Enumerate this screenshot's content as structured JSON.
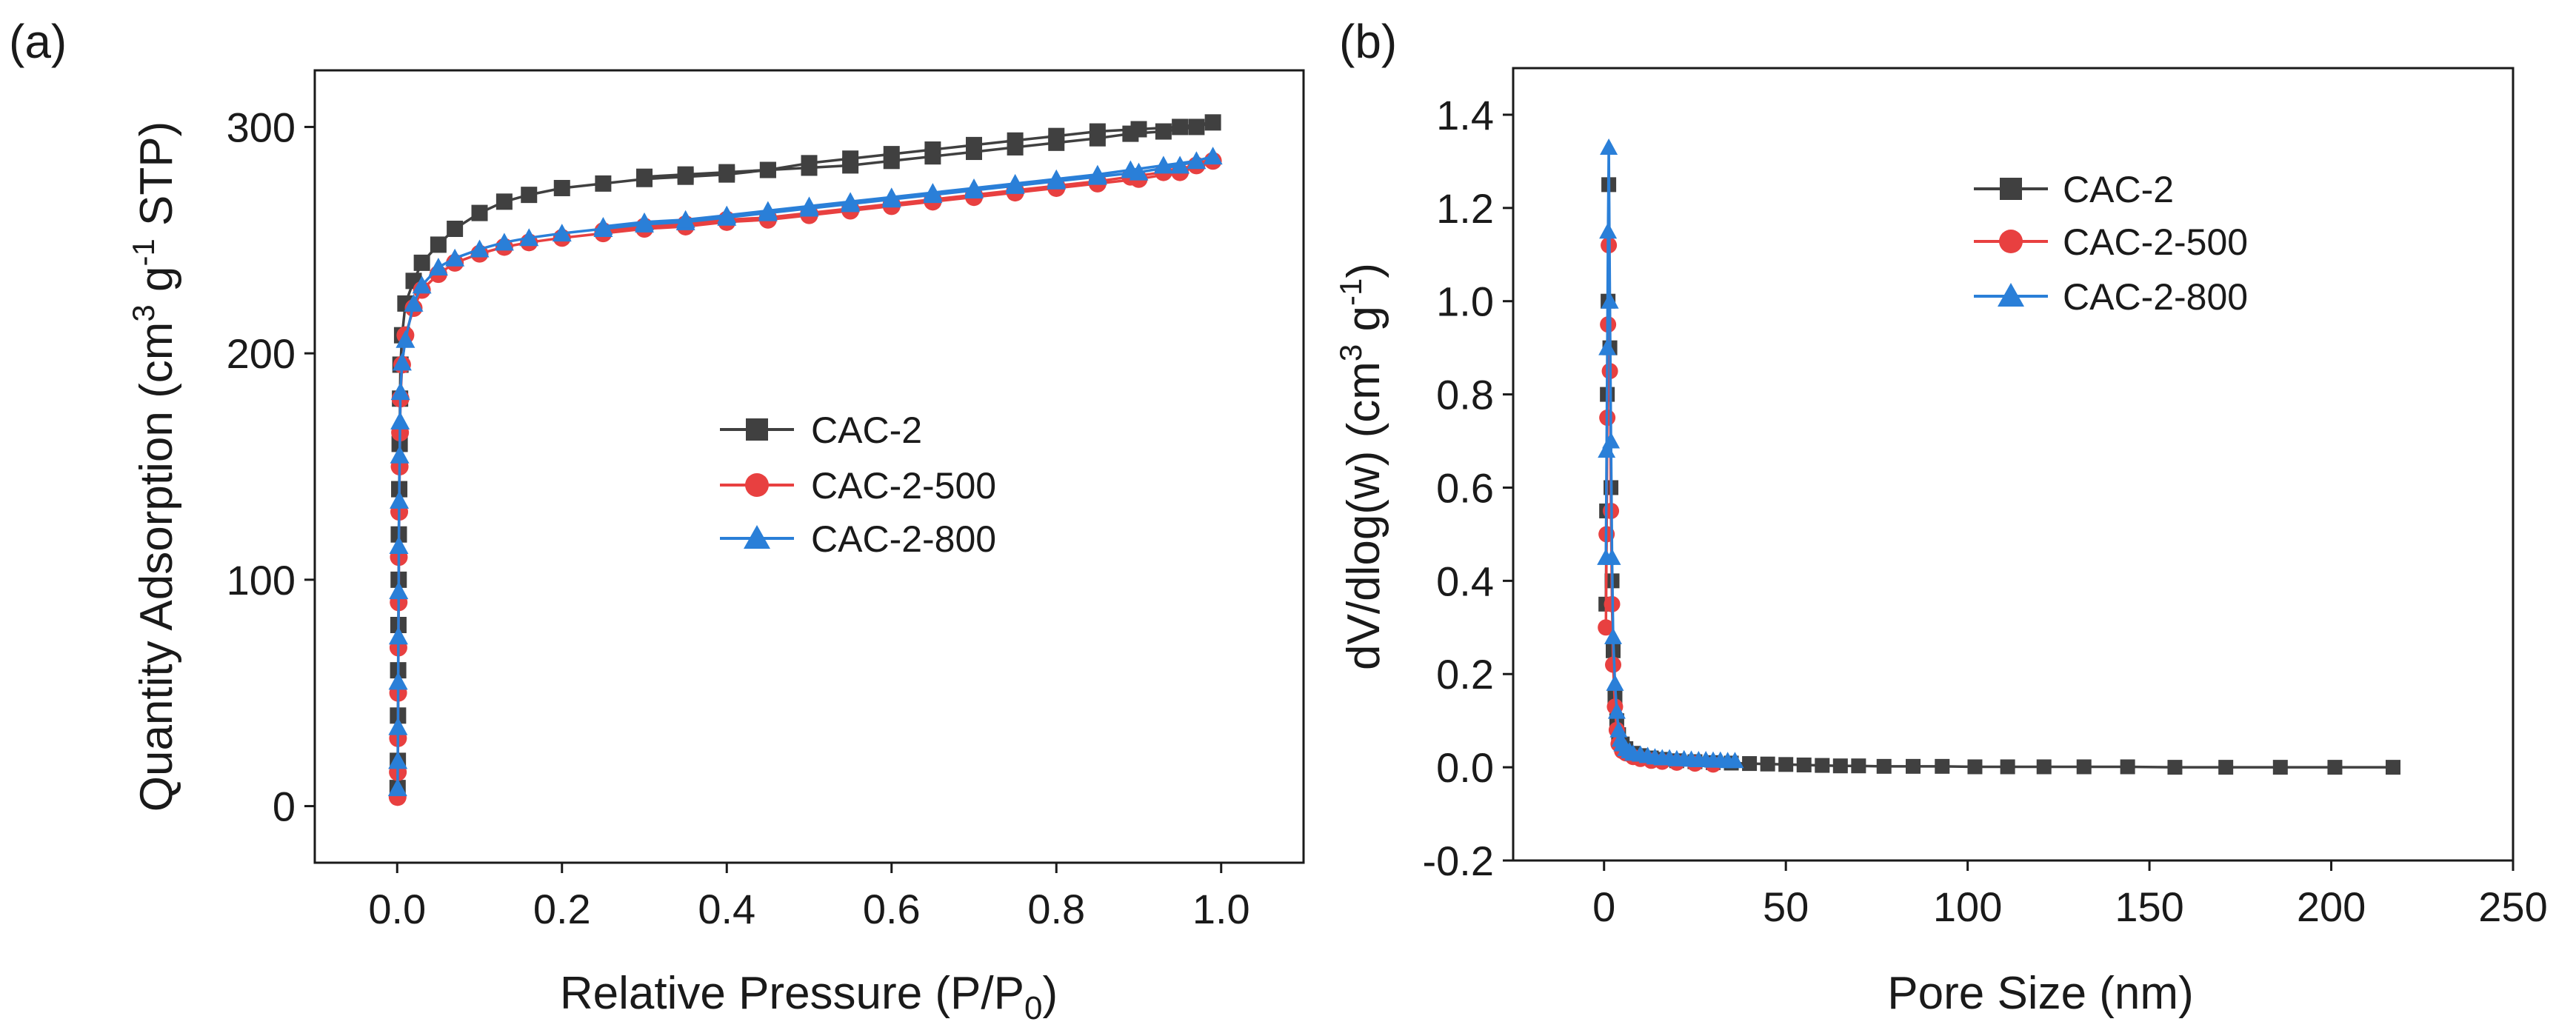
{
  "panels": [
    {
      "label": "(a)"
    },
    {
      "label": "(b)"
    }
  ],
  "chart_data": [
    {
      "type": "line",
      "xlabel_main": "Relative Pressure (P/P",
      "xlabel_sub": "0",
      "xlabel_end": ")",
      "ylabel_main": "Quantity Adsorption (cm",
      "ylabel_sup1": "3",
      "ylabel_mid": " g",
      "ylabel_sup2": "-1",
      "ylabel_end": " STP)",
      "xlim": [
        -0.1,
        1.1
      ],
      "ylim": [
        -25,
        325
      ],
      "xticks": [
        0.0,
        0.2,
        0.4,
        0.6,
        0.8,
        1.0
      ],
      "xtick_labels": [
        "0.0",
        "0.2",
        "0.4",
        "0.6",
        "0.8",
        "1.0"
      ],
      "yticks": [
        0,
        100,
        200,
        300
      ],
      "ytick_labels": [
        "0",
        "100",
        "200",
        "300"
      ],
      "legend_position": "center",
      "series": [
        {
          "name": "CAC-2",
          "color": "#404040",
          "marker": "square",
          "points": [
            [
              0.0005,
              8
            ],
            [
              0.0008,
              20
            ],
            [
              0.001,
              40
            ],
            [
              0.0012,
              60
            ],
            [
              0.0015,
              80
            ],
            [
              0.0018,
              100
            ],
            [
              0.002,
              120
            ],
            [
              0.0025,
              140
            ],
            [
              0.003,
              160
            ],
            [
              0.0035,
              180
            ],
            [
              0.004,
              195
            ],
            [
              0.006,
              208
            ],
            [
              0.01,
              222
            ],
            [
              0.02,
              232
            ],
            [
              0.03,
              240
            ],
            [
              0.05,
              248
            ],
            [
              0.07,
              255
            ],
            [
              0.1,
              262
            ],
            [
              0.13,
              267
            ],
            [
              0.16,
              270
            ],
            [
              0.2,
              273
            ],
            [
              0.25,
              275
            ],
            [
              0.3,
              277
            ],
            [
              0.35,
              278
            ],
            [
              0.4,
              279
            ],
            [
              0.45,
              281
            ],
            [
              0.5,
              284
            ],
            [
              0.55,
              286
            ],
            [
              0.6,
              288
            ],
            [
              0.65,
              290
            ],
            [
              0.7,
              292
            ],
            [
              0.75,
              294
            ],
            [
              0.8,
              296
            ],
            [
              0.85,
              298
            ],
            [
              0.9,
              299
            ],
            [
              0.95,
              300
            ],
            [
              0.99,
              302
            ],
            [
              0.97,
              300
            ],
            [
              0.93,
              298
            ],
            [
              0.89,
              297
            ],
            [
              0.85,
              295
            ],
            [
              0.8,
              293
            ],
            [
              0.75,
              291
            ],
            [
              0.7,
              289
            ],
            [
              0.65,
              287
            ],
            [
              0.6,
              285
            ],
            [
              0.55,
              283
            ],
            [
              0.5,
              282
            ],
            [
              0.45,
              281
            ],
            [
              0.4,
              280
            ],
            [
              0.35,
              279
            ],
            [
              0.3,
              278
            ]
          ]
        },
        {
          "name": "CAC-2-500",
          "color": "#e84040",
          "marker": "circle",
          "points": [
            [
              0.0005,
              4
            ],
            [
              0.0008,
              15
            ],
            [
              0.001,
              30
            ],
            [
              0.0012,
              50
            ],
            [
              0.0015,
              70
            ],
            [
              0.0018,
              90
            ],
            [
              0.002,
              110
            ],
            [
              0.0025,
              130
            ],
            [
              0.003,
              150
            ],
            [
              0.0035,
              165
            ],
            [
              0.004,
              180
            ],
            [
              0.006,
              195
            ],
            [
              0.01,
              208
            ],
            [
              0.02,
              220
            ],
            [
              0.03,
              228
            ],
            [
              0.05,
              235
            ],
            [
              0.07,
              240
            ],
            [
              0.1,
              244
            ],
            [
              0.13,
              247
            ],
            [
              0.16,
              249
            ],
            [
              0.2,
              251
            ],
            [
              0.25,
              253
            ],
            [
              0.3,
              255
            ],
            [
              0.35,
              256
            ],
            [
              0.4,
              258
            ],
            [
              0.45,
              259
            ],
            [
              0.5,
              261
            ],
            [
              0.55,
              263
            ],
            [
              0.6,
              265
            ],
            [
              0.65,
              267
            ],
            [
              0.7,
              269
            ],
            [
              0.75,
              271
            ],
            [
              0.8,
              273
            ],
            [
              0.85,
              275
            ],
            [
              0.9,
              277
            ],
            [
              0.95,
              280
            ],
            [
              0.99,
              285
            ],
            [
              0.97,
              283
            ],
            [
              0.93,
              280
            ],
            [
              0.89,
              278
            ],
            [
              0.85,
              276
            ],
            [
              0.8,
              274
            ],
            [
              0.75,
              272
            ],
            [
              0.7,
              270
            ],
            [
              0.65,
              268
            ],
            [
              0.6,
              266
            ],
            [
              0.55,
              264
            ],
            [
              0.5,
              262
            ],
            [
              0.45,
              260
            ],
            [
              0.4,
              259
            ],
            [
              0.35,
              257
            ],
            [
              0.3,
              256
            ],
            [
              0.25,
              254
            ]
          ]
        },
        {
          "name": "CAC-2-800",
          "color": "#2a7fd8",
          "marker": "triangle",
          "points": [
            [
              0.0005,
              8
            ],
            [
              0.0008,
              20
            ],
            [
              0.001,
              35
            ],
            [
              0.0012,
              55
            ],
            [
              0.0015,
              75
            ],
            [
              0.0018,
              95
            ],
            [
              0.002,
              115
            ],
            [
              0.0025,
              135
            ],
            [
              0.003,
              155
            ],
            [
              0.0035,
              170
            ],
            [
              0.004,
              183
            ],
            [
              0.006,
              196
            ],
            [
              0.01,
              206
            ],
            [
              0.02,
              222
            ],
            [
              0.03,
              230
            ],
            [
              0.05,
              238
            ],
            [
              0.07,
              242
            ],
            [
              0.1,
              246
            ],
            [
              0.13,
              249
            ],
            [
              0.16,
              251
            ],
            [
              0.2,
              253
            ],
            [
              0.25,
              255
            ],
            [
              0.3,
              257
            ],
            [
              0.35,
              258
            ],
            [
              0.4,
              260
            ],
            [
              0.45,
              262
            ],
            [
              0.5,
              264
            ],
            [
              0.55,
              266
            ],
            [
              0.6,
              268
            ],
            [
              0.65,
              270
            ],
            [
              0.7,
              272
            ],
            [
              0.75,
              274
            ],
            [
              0.8,
              276
            ],
            [
              0.85,
              278
            ],
            [
              0.9,
              280
            ],
            [
              0.95,
              283
            ],
            [
              0.99,
              287
            ],
            [
              0.97,
              285
            ],
            [
              0.93,
              283
            ],
            [
              0.89,
              281
            ],
            [
              0.85,
              279
            ],
            [
              0.8,
              277
            ],
            [
              0.75,
              275
            ],
            [
              0.7,
              273
            ],
            [
              0.65,
              271
            ],
            [
              0.6,
              269
            ],
            [
              0.55,
              267
            ],
            [
              0.5,
              265
            ],
            [
              0.45,
              263
            ],
            [
              0.4,
              261
            ],
            [
              0.35,
              259
            ],
            [
              0.3,
              258
            ],
            [
              0.25,
              256
            ]
          ]
        }
      ]
    },
    {
      "type": "line",
      "xlabel": "Pore Size (nm)",
      "ylabel_main": "dV/dlog(w) (cm",
      "ylabel_sup1": "3",
      "ylabel_mid": " g",
      "ylabel_sup2": "-1",
      "ylabel_end": ")",
      "xlim": [
        -25,
        250
      ],
      "ylim": [
        -0.2,
        1.5
      ],
      "xticks": [
        0,
        50,
        100,
        150,
        200,
        250
      ],
      "xtick_labels": [
        "0",
        "50",
        "100",
        "150",
        "200",
        "250"
      ],
      "yticks": [
        -0.2,
        0.0,
        0.2,
        0.4,
        0.6,
        0.8,
        1.0,
        1.2,
        1.4
      ],
      "ytick_labels": [
        "-0.2",
        "0.0",
        "0.2",
        "0.4",
        "0.6",
        "0.8",
        "1.0",
        "1.2",
        "1.4"
      ],
      "legend_position": "top-center",
      "series": [
        {
          "name": "CAC-2",
          "color": "#404040",
          "marker": "square",
          "points": [
            [
              0.5,
              0.35
            ],
            [
              0.7,
              0.55
            ],
            [
              0.9,
              0.8
            ],
            [
              1.1,
              1.0
            ],
            [
              1.3,
              1.25
            ],
            [
              1.6,
              0.9
            ],
            [
              1.9,
              0.6
            ],
            [
              2.2,
              0.4
            ],
            [
              2.5,
              0.25
            ],
            [
              3,
              0.15
            ],
            [
              3.5,
              0.1
            ],
            [
              4,
              0.07
            ],
            [
              5,
              0.05
            ],
            [
              6,
              0.04
            ],
            [
              8,
              0.03
            ],
            [
              10,
              0.025
            ],
            [
              13,
              0.02
            ],
            [
              16,
              0.017
            ],
            [
              20,
              0.014
            ],
            [
              25,
              0.012
            ],
            [
              30,
              0.01
            ],
            [
              35,
              0.009
            ],
            [
              40,
              0.008
            ],
            [
              45,
              0.007
            ],
            [
              50,
              0.006
            ],
            [
              55,
              0.005
            ],
            [
              60,
              0.004
            ],
            [
              65,
              0.003
            ],
            [
              70,
              0.003
            ],
            [
              77,
              0.002
            ],
            [
              85,
              0.002
            ],
            [
              93,
              0.002
            ],
            [
              102,
              0.001
            ],
            [
              111,
              0.001
            ],
            [
              121,
              0.001
            ],
            [
              132,
              0.001
            ],
            [
              144,
              0.001
            ],
            [
              157,
              0.0
            ],
            [
              171,
              0.0
            ],
            [
              186,
              0.0
            ],
            [
              201,
              0.0
            ],
            [
              217,
              0.0
            ]
          ]
        },
        {
          "name": "CAC-2-500",
          "color": "#e84040",
          "marker": "circle",
          "points": [
            [
              0.5,
              0.3
            ],
            [
              0.7,
              0.5
            ],
            [
              0.9,
              0.75
            ],
            [
              1.1,
              0.95
            ],
            [
              1.3,
              1.12
            ],
            [
              1.6,
              0.85
            ],
            [
              1.9,
              0.55
            ],
            [
              2.2,
              0.35
            ],
            [
              2.5,
              0.22
            ],
            [
              3,
              0.13
            ],
            [
              3.5,
              0.08
            ],
            [
              4,
              0.05
            ],
            [
              5,
              0.035
            ],
            [
              6,
              0.03
            ],
            [
              8,
              0.022
            ],
            [
              10,
              0.018
            ],
            [
              13,
              0.014
            ],
            [
              16,
              0.012
            ],
            [
              20,
              0.01
            ],
            [
              25,
              0.008
            ],
            [
              30,
              0.006
            ]
          ]
        },
        {
          "name": "CAC-2-800",
          "color": "#2a7fd8",
          "marker": "triangle",
          "points": [
            [
              0.5,
              0.45
            ],
            [
              0.7,
              0.68
            ],
            [
              0.9,
              0.9
            ],
            [
              1.1,
              1.15
            ],
            [
              1.3,
              1.33
            ],
            [
              1.6,
              1.0
            ],
            [
              1.9,
              0.7
            ],
            [
              2.2,
              0.45
            ],
            [
              2.5,
              0.28
            ],
            [
              3,
              0.18
            ],
            [
              3.5,
              0.12
            ],
            [
              4,
              0.08
            ],
            [
              4.5,
              0.06
            ],
            [
              5,
              0.05
            ],
            [
              6,
              0.04
            ],
            [
              7,
              0.035
            ],
            [
              8,
              0.03
            ],
            [
              10,
              0.028
            ],
            [
              12,
              0.025
            ],
            [
              14,
              0.022
            ],
            [
              16,
              0.02
            ],
            [
              18,
              0.02
            ],
            [
              20,
              0.018
            ],
            [
              22,
              0.018
            ],
            [
              24,
              0.017
            ],
            [
              26,
              0.016
            ],
            [
              28,
              0.016
            ],
            [
              30,
              0.015
            ],
            [
              32,
              0.015
            ],
            [
              34,
              0.014
            ],
            [
              36,
              0.014
            ]
          ]
        }
      ]
    }
  ]
}
